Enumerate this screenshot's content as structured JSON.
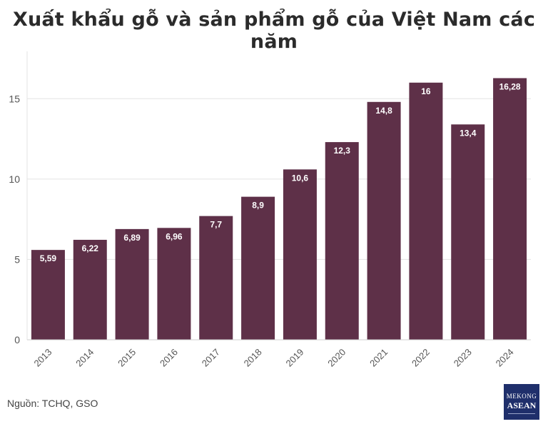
{
  "title": "Xuất khẩu gỗ và sản phẩm gỗ của Việt Nam các năm",
  "source_note": "Nguồn: TCHQ, GSO",
  "logo": {
    "line1": "MEKONG",
    "line2": "ASEAN"
  },
  "colors": {
    "bar": "#5e3048",
    "grid": "#e3e3e3",
    "text": "#555555",
    "label": "#ffffff"
  },
  "chart_data": {
    "type": "bar",
    "categories": [
      "2013",
      "2014",
      "2015",
      "2016",
      "2017",
      "2018",
      "2019",
      "2020",
      "2021",
      "2022",
      "2023",
      "2024"
    ],
    "values": [
      5.59,
      6.22,
      6.89,
      6.96,
      7.7,
      8.9,
      10.6,
      12.3,
      14.8,
      16,
      13.4,
      16.28
    ],
    "data_labels": [
      "5,59",
      "6,22",
      "6,89",
      "6,96",
      "7,7",
      "8,9",
      "10,6",
      "12,3",
      "14,8",
      "16",
      "13,4",
      "16,28"
    ],
    "title": "Xuất khẩu gỗ và sản phẩm gỗ của Việt Nam các năm",
    "xlabel": "",
    "ylabel": "",
    "ylim": [
      0,
      17.5
    ],
    "yticks": [
      0,
      5,
      10,
      15
    ],
    "grid": true,
    "legend": "none"
  }
}
